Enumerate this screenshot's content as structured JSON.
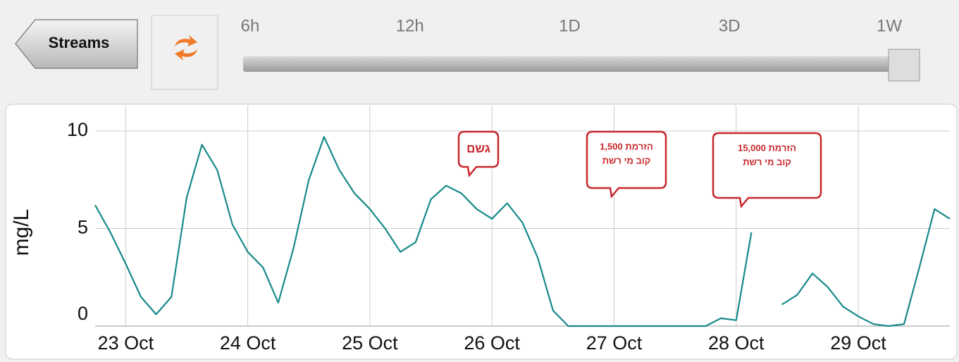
{
  "ui": {
    "back_button": "Streams",
    "range_labels": [
      "6h",
      "12h",
      "1D",
      "3D",
      "1W"
    ]
  },
  "chart_data": {
    "type": "line",
    "y_label": "mg/L",
    "color": "#17898a",
    "grid": true,
    "xlim": [
      22.75,
      29.75
    ],
    "ylim": [
      0,
      11.3
    ],
    "yticks": [
      0,
      5,
      10
    ],
    "xticks": [
      {
        "value": 23,
        "label": "23 Oct"
      },
      {
        "value": 24,
        "label": "24 Oct"
      },
      {
        "value": 25,
        "label": "25 Oct"
      },
      {
        "value": 26,
        "label": "26 Oct"
      },
      {
        "value": 27,
        "label": "27 Oct"
      },
      {
        "value": 28,
        "label": "28 Oct"
      },
      {
        "value": 29,
        "label": "29 Oct"
      }
    ],
    "x": [
      22.75,
      22.875,
      23,
      23.125,
      23.25,
      23.375,
      23.5,
      23.625,
      23.75,
      23.875,
      24,
      24.125,
      24.25,
      24.375,
      24.5,
      24.625,
      24.75,
      24.875,
      25,
      25.125,
      25.25,
      25.375,
      25.5,
      25.625,
      25.75,
      25.875,
      26,
      26.125,
      26.25,
      26.375,
      26.5,
      26.625,
      26.75,
      27,
      27.25,
      27.5,
      27.75,
      27.875,
      28,
      28.125,
      28.25,
      28.375,
      28.5,
      28.625,
      28.75,
      28.875,
      29,
      29.125,
      29.25,
      29.375,
      29.5,
      29.625,
      29.75
    ],
    "values": [
      6.2,
      4.8,
      3.2,
      1.5,
      0.6,
      1.5,
      6.6,
      9.3,
      8.0,
      5.2,
      3.8,
      3.0,
      1.2,
      4.0,
      7.5,
      9.7,
      8.0,
      6.8,
      6.0,
      5.0,
      3.8,
      4.3,
      6.5,
      7.2,
      6.8,
      6.0,
      5.5,
      6.3,
      5.3,
      3.5,
      0.8,
      0,
      0,
      0,
      0,
      0,
      0,
      0.4,
      0.3,
      4.8,
      null,
      1.1,
      1.6,
      2.7,
      2.0,
      1.0,
      0.5,
      0.1,
      0,
      0.1,
      3.0,
      6.0,
      5.5
    ],
    "annotations": [
      {
        "lines": [
          "גשם"
        ]
      },
      {
        "lines": [
          "הזרמת 1,500",
          "קוב מי רשת"
        ]
      },
      {
        "lines": [
          "הזרמת 15,000",
          "קוב מי רשת"
        ]
      }
    ]
  }
}
